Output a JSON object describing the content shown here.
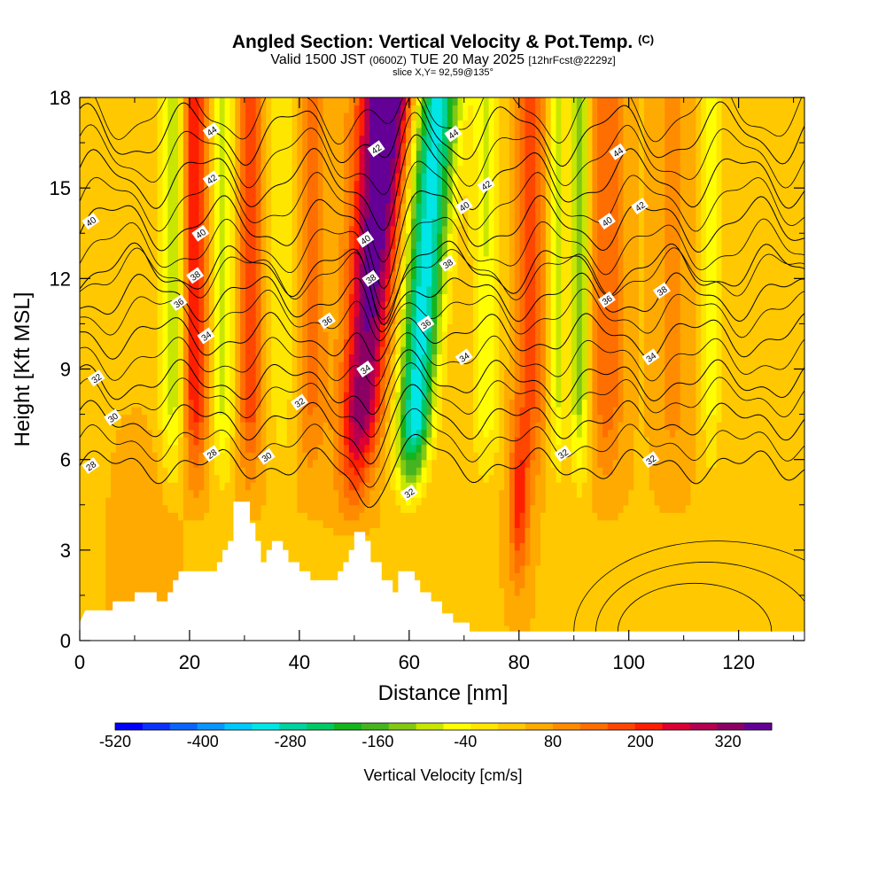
{
  "title": {
    "main": "Angled Section: Vertical Velocity & Pot.Temp.",
    "tag": "(C)"
  },
  "subtitle": {
    "a": "Valid 1500 JST",
    "b": "(0600Z)",
    "c": "TUE 20 May 2025",
    "d": "[12hrFcst@2229z]"
  },
  "slice_label": "slice X,Y= 92,59@135°",
  "chart_data": {
    "type": "heatmap",
    "xlabel": "Distance [nm]",
    "ylabel": "Height [Kft MSL]",
    "xlim": [
      0,
      132
    ],
    "ylim": [
      0,
      18
    ],
    "x_ticks": [
      "0",
      "20",
      "40",
      "60",
      "80",
      "100",
      "120"
    ],
    "y_ticks": [
      "0",
      "3",
      "6",
      "9",
      "12",
      "15",
      "18"
    ],
    "colorbar": {
      "label": "Vertical Velocity [cm/s]",
      "tick_labels": [
        "-520",
        "-400",
        "-280",
        "-160",
        "-40",
        "80",
        "200",
        "320"
      ],
      "tick_values": [
        -520,
        -400,
        -280,
        -160,
        -40,
        80,
        200,
        320
      ],
      "range": [
        -520,
        380
      ],
      "colors": [
        "#0000ff",
        "#0a32ff",
        "#0a64ff",
        "#0a96ff",
        "#00c8ff",
        "#00e6e6",
        "#00d2a0",
        "#00c864",
        "#14b41e",
        "#46b41e",
        "#82c814",
        "#c8e600",
        "#ffff00",
        "#ffe600",
        "#ffc800",
        "#ffaa00",
        "#ff8c00",
        "#ff6e00",
        "#ff4600",
        "#ff1e00",
        "#dc0032",
        "#b40050",
        "#8c0064",
        "#640096"
      ]
    },
    "terrain_kft": [
      [
        0,
        0.6
      ],
      [
        1,
        1
      ],
      [
        6,
        1
      ],
      [
        6,
        1.3
      ],
      [
        10,
        1.3
      ],
      [
        10,
        1.6
      ],
      [
        14,
        1.6
      ],
      [
        14,
        1.3
      ],
      [
        16,
        1.3
      ],
      [
        16,
        1.6
      ],
      [
        17,
        1.6
      ],
      [
        17,
        2
      ],
      [
        18,
        2
      ],
      [
        18,
        2.3
      ],
      [
        20,
        2.3
      ],
      [
        20,
        2.3
      ],
      [
        25,
        2.3
      ],
      [
        25,
        2.6
      ],
      [
        26,
        2.6
      ],
      [
        26,
        3.0
      ],
      [
        27,
        3.0
      ],
      [
        27,
        3.3
      ],
      [
        28,
        3.3
      ],
      [
        28,
        4.6
      ],
      [
        31,
        4.6
      ],
      [
        31,
        3.9
      ],
      [
        32,
        3.9
      ],
      [
        32,
        3.3
      ],
      [
        33,
        3.3
      ],
      [
        33,
        2.6
      ],
      [
        34,
        2.6
      ],
      [
        34,
        3.0
      ],
      [
        35,
        3.0
      ],
      [
        35,
        3.3
      ],
      [
        37,
        3.3
      ],
      [
        37,
        3.0
      ],
      [
        38,
        3.0
      ],
      [
        38,
        2.6
      ],
      [
        40,
        2.6
      ],
      [
        40,
        2.3
      ],
      [
        42,
        2.3
      ],
      [
        42,
        2
      ],
      [
        47,
        2
      ],
      [
        47,
        2.3
      ],
      [
        48,
        2.3
      ],
      [
        48,
        2.6
      ],
      [
        49,
        2.6
      ],
      [
        49,
        3.0
      ],
      [
        50,
        3.0
      ],
      [
        50,
        3.6
      ],
      [
        52,
        3.6
      ],
      [
        52,
        3.3
      ],
      [
        53,
        3.3
      ],
      [
        53,
        2.6
      ],
      [
        55,
        2.6
      ],
      [
        55,
        2.0
      ],
      [
        57,
        2.0
      ],
      [
        57,
        1.6
      ],
      [
        58,
        1.6
      ],
      [
        58,
        2.3
      ],
      [
        61,
        2.3
      ],
      [
        61,
        2.0
      ],
      [
        62,
        2.0
      ],
      [
        62,
        1.6
      ],
      [
        64,
        1.6
      ],
      [
        64,
        1.3
      ],
      [
        66,
        1.3
      ],
      [
        66,
        0.9
      ],
      [
        68,
        0.9
      ],
      [
        68,
        0.6
      ],
      [
        71,
        0.6
      ],
      [
        71,
        0.3
      ],
      [
        132,
        0.3
      ]
    ],
    "theta_contours": [
      {
        "level": 28,
        "base_kft": 5.8,
        "label_x": 2
      },
      {
        "level": 30,
        "base_kft": 7.3,
        "label_x": 6
      },
      {
        "level": 32,
        "base_kft": 8.6,
        "label_x": 3
      },
      {
        "level": 34,
        "base_kft": 10.1,
        "label_x": 23
      },
      {
        "level": 36,
        "base_kft": 11.4,
        "label_x": 18
      },
      {
        "level": 38,
        "base_kft": 12.3,
        "label_x": 21
      },
      {
        "level": 40,
        "base_kft": 13.8,
        "label_x": 2
      },
      {
        "level": 42,
        "base_kft": 15.3,
        "label_x": 24
      },
      {
        "level": 44,
        "base_kft": 16.8,
        "label_x": 24
      }
    ],
    "theta_labels": [
      {
        "x": 2,
        "y_kft": 5.8,
        "text": "28"
      },
      {
        "x": 24,
        "y_kft": 6.2,
        "text": "28"
      },
      {
        "x": 6,
        "y_kft": 7.4,
        "text": "30"
      },
      {
        "x": 34,
        "y_kft": 6.1,
        "text": "30"
      },
      {
        "x": 3,
        "y_kft": 8.7,
        "text": "32"
      },
      {
        "x": 40,
        "y_kft": 7.9,
        "text": "32"
      },
      {
        "x": 60,
        "y_kft": 4.9,
        "text": "32"
      },
      {
        "x": 88,
        "y_kft": 6.2,
        "text": "32"
      },
      {
        "x": 104,
        "y_kft": 6.0,
        "text": "32"
      },
      {
        "x": 23,
        "y_kft": 10.1,
        "text": "34"
      },
      {
        "x": 52,
        "y_kft": 9.0,
        "text": "34"
      },
      {
        "x": 70,
        "y_kft": 9.4,
        "text": "34"
      },
      {
        "x": 104,
        "y_kft": 9.4,
        "text": "34"
      },
      {
        "x": 18,
        "y_kft": 11.2,
        "text": "36"
      },
      {
        "x": 45,
        "y_kft": 10.6,
        "text": "36"
      },
      {
        "x": 63,
        "y_kft": 10.5,
        "text": "36"
      },
      {
        "x": 96,
        "y_kft": 11.3,
        "text": "36"
      },
      {
        "x": 21,
        "y_kft": 12.1,
        "text": "38"
      },
      {
        "x": 53,
        "y_kft": 12.0,
        "text": "38"
      },
      {
        "x": 67,
        "y_kft": 12.5,
        "text": "38"
      },
      {
        "x": 106,
        "y_kft": 11.6,
        "text": "38"
      },
      {
        "x": 2,
        "y_kft": 13.9,
        "text": "40"
      },
      {
        "x": 22,
        "y_kft": 13.5,
        "text": "40"
      },
      {
        "x": 52,
        "y_kft": 13.3,
        "text": "40"
      },
      {
        "x": 70,
        "y_kft": 14.4,
        "text": "40"
      },
      {
        "x": 96,
        "y_kft": 13.9,
        "text": "40"
      },
      {
        "x": 24,
        "y_kft": 15.3,
        "text": "42"
      },
      {
        "x": 54,
        "y_kft": 16.3,
        "text": "42"
      },
      {
        "x": 74,
        "y_kft": 15.1,
        "text": "42"
      },
      {
        "x": 102,
        "y_kft": 14.4,
        "text": "42"
      },
      {
        "x": 24,
        "y_kft": 16.9,
        "text": "44"
      },
      {
        "x": 68,
        "y_kft": 16.8,
        "text": "44"
      },
      {
        "x": 98,
        "y_kft": 16.2,
        "text": "44"
      }
    ]
  }
}
